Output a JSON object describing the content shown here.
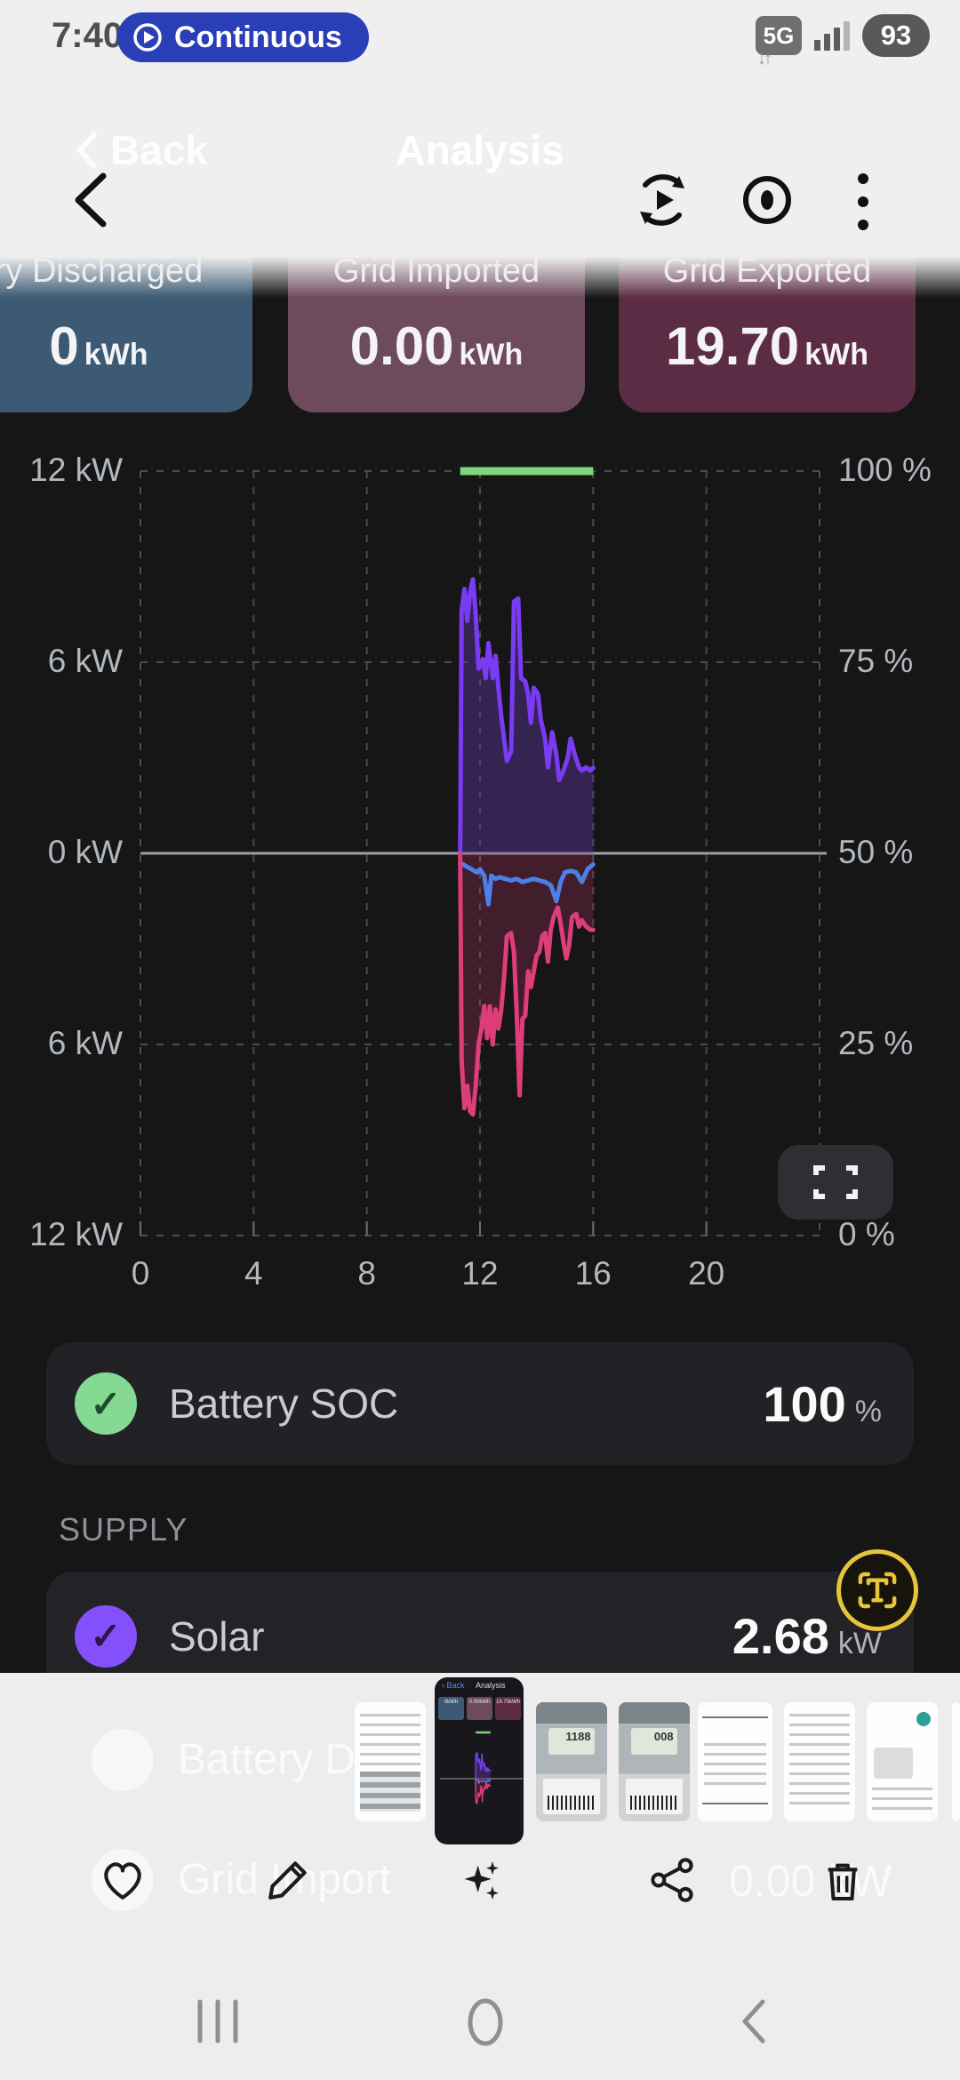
{
  "status_bar": {
    "time": "7:40",
    "mode_pill_label": "Continuous",
    "network": "5G",
    "battery_level": "93"
  },
  "gallery_header": {
    "back_ghost": "Back",
    "title_ghost": "Analysis"
  },
  "summary_cards": [
    {
      "title": "ry Discharged",
      "value": "0",
      "unit": "kWh",
      "color": "#3c5a74"
    },
    {
      "title": "Grid Imported",
      "value": "0.00",
      "unit": "kWh",
      "color": "#6d4a5c"
    },
    {
      "title": "Grid Exported",
      "value": "19.70",
      "unit": "kWh",
      "color": "#5c2c44"
    }
  ],
  "chart_data": {
    "type": "line",
    "title": "",
    "x_range": [
      0,
      24
    ],
    "x_ticks": [
      0,
      4,
      8,
      12,
      16,
      20
    ],
    "left_axis": {
      "unit": "kW",
      "tick_labels": [
        "12 kW",
        "6 kW",
        "0 kW",
        "6 kW",
        "12 kW"
      ],
      "range": [
        -12,
        12
      ]
    },
    "right_axis": {
      "unit": "%",
      "tick_labels": [
        "100 %",
        "75 %",
        "50 %",
        "25 %",
        "0 %"
      ],
      "range": [
        0,
        100
      ]
    },
    "grid": "dashed",
    "legend_position": "below",
    "series": [
      {
        "name": "Battery SOC",
        "axis": "right",
        "color": "#7ed67f",
        "points": [
          [
            11.3,
            100
          ],
          [
            16.0,
            100
          ]
        ]
      },
      {
        "name": "Solar",
        "axis": "left",
        "color": "#7a3bf5",
        "fill": "rgba(104,60,180,0.38)",
        "points": [
          [
            11.3,
            0
          ],
          [
            11.35,
            7.6
          ],
          [
            11.45,
            8.3
          ],
          [
            11.55,
            7.3
          ],
          [
            11.65,
            8.2
          ],
          [
            11.75,
            8.6
          ],
          [
            11.85,
            7.5
          ],
          [
            11.95,
            5.8
          ],
          [
            12.1,
            6.1
          ],
          [
            12.2,
            5.5
          ],
          [
            12.3,
            6.6
          ],
          [
            12.45,
            5.5
          ],
          [
            12.55,
            6.2
          ],
          [
            12.65,
            5.2
          ],
          [
            12.75,
            4.3
          ],
          [
            12.85,
            3.6
          ],
          [
            12.95,
            2.9
          ],
          [
            13.1,
            3.2
          ],
          [
            13.2,
            7.9
          ],
          [
            13.35,
            8.0
          ],
          [
            13.45,
            5.5
          ],
          [
            13.6,
            5.4
          ],
          [
            13.7,
            5.0
          ],
          [
            13.8,
            4.1
          ],
          [
            13.9,
            5.2
          ],
          [
            14.05,
            5.0
          ],
          [
            14.15,
            4.2
          ],
          [
            14.3,
            3.6
          ],
          [
            14.4,
            2.7
          ],
          [
            14.55,
            3.8
          ],
          [
            14.7,
            3.1
          ],
          [
            14.8,
            2.3
          ],
          [
            14.95,
            2.6
          ],
          [
            15.1,
            3.0
          ],
          [
            15.2,
            3.6
          ],
          [
            15.35,
            3.1
          ],
          [
            15.5,
            2.7
          ],
          [
            15.6,
            2.6
          ],
          [
            15.75,
            2.7
          ],
          [
            15.9,
            2.6
          ],
          [
            16.0,
            2.68
          ]
        ]
      },
      {
        "name": "Battery",
        "axis": "left",
        "color": "#4d7fe8",
        "points": [
          [
            11.3,
            -0.3
          ],
          [
            11.5,
            -0.4
          ],
          [
            11.7,
            -0.5
          ],
          [
            11.9,
            -0.6
          ],
          [
            12.0,
            -0.5
          ],
          [
            12.15,
            -0.7
          ],
          [
            12.3,
            -1.6
          ],
          [
            12.4,
            -0.7
          ],
          [
            12.55,
            -0.8
          ],
          [
            12.7,
            -0.75
          ],
          [
            12.9,
            -0.8
          ],
          [
            13.1,
            -0.85
          ],
          [
            13.3,
            -0.8
          ],
          [
            13.5,
            -0.9
          ],
          [
            13.7,
            -0.85
          ],
          [
            13.9,
            -0.8
          ],
          [
            14.1,
            -0.85
          ],
          [
            14.3,
            -0.9
          ],
          [
            14.5,
            -1.0
          ],
          [
            14.7,
            -1.5
          ],
          [
            14.85,
            -0.9
          ],
          [
            15.0,
            -0.6
          ],
          [
            15.2,
            -0.55
          ],
          [
            15.4,
            -0.6
          ],
          [
            15.6,
            -0.9
          ],
          [
            15.8,
            -0.5
          ],
          [
            16.0,
            -0.35
          ]
        ]
      },
      {
        "name": "Grid",
        "axis": "left",
        "color": "#dd3d78",
        "fill": "rgba(170,45,95,0.30)",
        "points": [
          [
            11.3,
            0
          ],
          [
            11.35,
            -6.5
          ],
          [
            11.45,
            -8.0
          ],
          [
            11.55,
            -7.3
          ],
          [
            11.65,
            -8.1
          ],
          [
            11.75,
            -8.2
          ],
          [
            11.85,
            -7.3
          ],
          [
            11.95,
            -6.0
          ],
          [
            12.05,
            -5.5
          ],
          [
            12.15,
            -4.8
          ],
          [
            12.25,
            -5.8
          ],
          [
            12.35,
            -4.8
          ],
          [
            12.45,
            -6.0
          ],
          [
            12.55,
            -4.9
          ],
          [
            12.65,
            -5.5
          ],
          [
            12.75,
            -4.9
          ],
          [
            12.85,
            -3.9
          ],
          [
            12.95,
            -2.6
          ],
          [
            13.1,
            -2.5
          ],
          [
            13.2,
            -3.1
          ],
          [
            13.3,
            -5.1
          ],
          [
            13.4,
            -7.6
          ],
          [
            13.5,
            -5.2
          ],
          [
            13.6,
            -5.1
          ],
          [
            13.7,
            -3.7
          ],
          [
            13.8,
            -4.2
          ],
          [
            13.9,
            -3.7
          ],
          [
            14.0,
            -3.2
          ],
          [
            14.1,
            -3.1
          ],
          [
            14.2,
            -2.6
          ],
          [
            14.3,
            -2.5
          ],
          [
            14.4,
            -3.4
          ],
          [
            14.5,
            -2.4
          ],
          [
            14.6,
            -2.0
          ],
          [
            14.75,
            -1.7
          ],
          [
            14.85,
            -2.2
          ],
          [
            14.95,
            -2.8
          ],
          [
            15.05,
            -3.3
          ],
          [
            15.15,
            -2.9
          ],
          [
            15.25,
            -2.0
          ],
          [
            15.4,
            -1.9
          ],
          [
            15.5,
            -2.3
          ],
          [
            15.6,
            -2.1
          ],
          [
            15.75,
            -2.3
          ],
          [
            15.9,
            -2.4
          ],
          [
            16.0,
            -2.4
          ]
        ]
      }
    ]
  },
  "legend_rows": {
    "battery_soc": {
      "label": "Battery SOC",
      "value": "100",
      "unit": "%",
      "check_color": "#86d993"
    },
    "supply_header": "SUPPLY",
    "solar": {
      "label": "Solar",
      "value": "2.68",
      "unit": "kW",
      "check_color": "#8450fb"
    }
  },
  "ghost_rows": {
    "battery_label": "Battery Dis",
    "grid_label": "Grid Import",
    "grid_value": "0.00 kW"
  },
  "icons": {
    "gallery_top": [
      "back-arrow",
      "motion-photo",
      "eye",
      "more-menu"
    ],
    "toolbar": [
      "favorite-heart",
      "edit-pencil",
      "ai-remaster-sparkles",
      "share",
      "delete-trash"
    ],
    "nav": [
      "recents",
      "home",
      "back"
    ],
    "text_extract_badge": "T"
  },
  "thumbnails": [
    {
      "kind": "document-with-table"
    },
    {
      "kind": "energy-app-screenshot",
      "selected": true
    },
    {
      "kind": "electric-meter-photo"
    },
    {
      "kind": "electric-meter-photo"
    },
    {
      "kind": "document-lined"
    },
    {
      "kind": "document-summary"
    },
    {
      "kind": "chat-screenshot"
    },
    {
      "kind": "partial-edge"
    }
  ],
  "colors": {
    "page_bg": "#161616",
    "sheet_bg": "#ededee",
    "pill_blue": "#2a3eb8",
    "soc_green": "#7ed67f",
    "solar_purple": "#7a3bf5",
    "battery_blue": "#4d7fe8",
    "grid_pink": "#dd3d78",
    "badge_gold": "#e7c43b"
  }
}
